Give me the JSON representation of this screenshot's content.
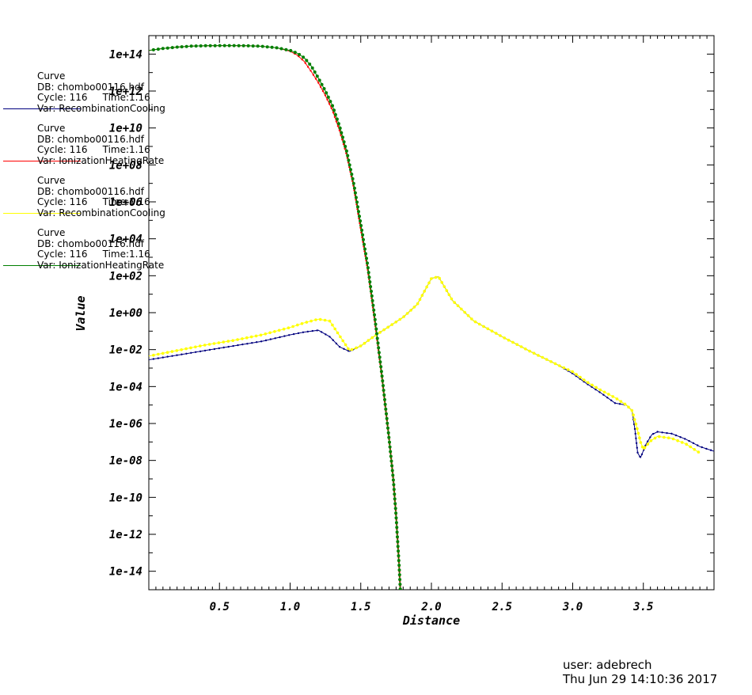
{
  "chart_data": {
    "type": "line",
    "xlabel": "Distance",
    "ylabel": "Value",
    "xlim": [
      0.0,
      4.0
    ],
    "ylim_log10": [
      -15.0,
      15.0
    ],
    "y_scale": "log",
    "x_ticks": [
      "0.5",
      "1.0",
      "1.5",
      "2.0",
      "2.5",
      "3.0",
      "3.5"
    ],
    "y_ticks": [
      "1e+14",
      "1e+12",
      "1e+10",
      "1e+08",
      "1e+06",
      "1e+04",
      "1e+02",
      "1e+00",
      "1e-02",
      "1e-04",
      "1e-06",
      "1e-08",
      "1e-10",
      "1e-12",
      "1e-14"
    ],
    "series": [
      {
        "color": "#00007f",
        "legend": [
          "Curve",
          "DB: chombo00116.hdf",
          "Cycle: 116",
          "Time:1.16",
          "Var: RecombinationCooling"
        ],
        "x": [
          0.0,
          0.2,
          0.4,
          0.6,
          0.8,
          1.0,
          1.1,
          1.2,
          1.28,
          1.35,
          1.42,
          1.5,
          1.6,
          1.7,
          1.8,
          1.9,
          2.0,
          2.05,
          2.15,
          2.3,
          2.5,
          2.7,
          2.9,
          3.0,
          3.1,
          3.2,
          3.3,
          3.38,
          3.42,
          3.44,
          3.46,
          3.48,
          3.52,
          3.56,
          3.6,
          3.65,
          3.7,
          3.8,
          3.9,
          4.0
        ],
        "y_log10": [
          -2.55,
          -2.3,
          -2.05,
          -1.8,
          -1.55,
          -1.2,
          -1.05,
          -0.95,
          -1.3,
          -1.85,
          -2.1,
          -1.8,
          -1.25,
          -0.75,
          -0.25,
          0.45,
          1.85,
          1.95,
          0.65,
          -0.45,
          -1.3,
          -2.1,
          -2.85,
          -3.3,
          -3.85,
          -4.35,
          -4.9,
          -5.0,
          -5.3,
          -6.3,
          -7.6,
          -7.85,
          -7.1,
          -6.6,
          -6.45,
          -6.5,
          -6.55,
          -6.85,
          -7.25,
          -7.5
        ]
      },
      {
        "color": "#ff0000",
        "legend": [
          "Curve",
          "DB: chombo00116.hdf",
          "Cycle: 116",
          "Time:1.16",
          "Var: IonizationHeatingRate"
        ],
        "x": [
          0.0,
          0.1,
          0.2,
          0.3,
          0.4,
          0.5,
          0.6,
          0.7,
          0.8,
          0.9,
          1.0,
          1.05,
          1.1,
          1.15,
          1.2,
          1.25,
          1.3,
          1.35,
          1.4,
          1.45,
          1.5,
          1.55,
          1.6,
          1.65,
          1.7,
          1.73,
          1.75,
          1.77,
          1.78
        ],
        "y_log10": [
          14.2,
          14.3,
          14.38,
          14.43,
          14.45,
          14.46,
          14.46,
          14.45,
          14.42,
          14.35,
          14.15,
          13.95,
          13.6,
          13.05,
          12.45,
          11.75,
          10.95,
          9.85,
          8.55,
          6.8,
          4.5,
          2.3,
          -0.5,
          -3.5,
          -6.8,
          -9.0,
          -11.0,
          -13.5,
          -15.0
        ]
      },
      {
        "color": "#ffff00",
        "legend": [
          "Curve",
          "DB: chombo00116.hdf",
          "Cycle: 116",
          "Time:1.16",
          "Var: RecombinationCooling"
        ],
        "x": [
          0.0,
          0.2,
          0.4,
          0.6,
          0.8,
          1.0,
          1.1,
          1.2,
          1.28,
          1.35,
          1.42,
          1.5,
          1.6,
          1.7,
          1.8,
          1.9,
          2.0,
          2.05,
          2.15,
          2.3,
          2.5,
          2.7,
          2.9,
          3.0,
          3.1,
          3.2,
          3.3,
          3.38,
          3.42,
          3.45,
          3.48,
          3.5,
          3.55,
          3.6,
          3.65,
          3.7,
          3.8,
          3.9
        ],
        "y_log10": [
          -2.35,
          -2.05,
          -1.75,
          -1.5,
          -1.2,
          -0.8,
          -0.55,
          -0.35,
          -0.45,
          -1.25,
          -2.05,
          -1.8,
          -1.25,
          -0.75,
          -0.25,
          0.45,
          1.85,
          1.95,
          0.65,
          -0.45,
          -1.3,
          -2.1,
          -2.85,
          -3.2,
          -3.75,
          -4.2,
          -4.6,
          -5.0,
          -5.3,
          -6.1,
          -7.0,
          -7.4,
          -6.95,
          -6.7,
          -6.75,
          -6.8,
          -7.1,
          -7.6
        ]
      },
      {
        "color": "#007f00",
        "legend": [
          "Curve",
          "DB: chombo00116.hdf",
          "Cycle: 116",
          "Time:1.16",
          "Var: IonizationHeatingRate"
        ],
        "x": [
          0.0,
          0.1,
          0.2,
          0.3,
          0.4,
          0.5,
          0.6,
          0.7,
          0.8,
          0.9,
          1.0,
          1.05,
          1.1,
          1.15,
          1.2,
          1.25,
          1.3,
          1.35,
          1.4,
          1.45,
          1.5,
          1.55,
          1.6,
          1.65,
          1.7,
          1.73,
          1.75,
          1.77,
          1.78
        ],
        "y_log10": [
          14.2,
          14.3,
          14.38,
          14.43,
          14.45,
          14.46,
          14.46,
          14.45,
          14.42,
          14.35,
          14.2,
          14.05,
          13.8,
          13.35,
          12.7,
          12.0,
          11.2,
          10.1,
          8.75,
          7.0,
          4.8,
          2.5,
          -0.3,
          -3.4,
          -6.8,
          -9.0,
          -11.0,
          -13.5,
          -15.0
        ]
      }
    ]
  },
  "footer": {
    "user": "user: adebrech",
    "timestamp": "Thu Jun 29 14:10:36 2017"
  }
}
